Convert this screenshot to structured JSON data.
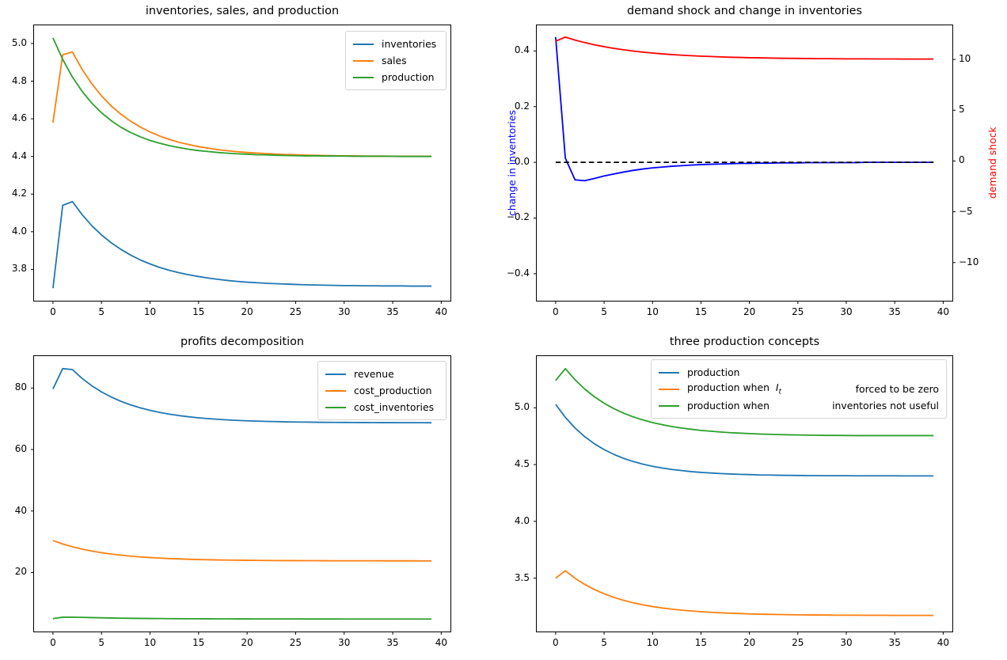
{
  "chart_data": [
    {
      "type": "line",
      "title": "inventories, sales, and production",
      "x": [
        0,
        1,
        2,
        3,
        4,
        5,
        6,
        7,
        8,
        9,
        10,
        11,
        12,
        13,
        14,
        15,
        16,
        17,
        18,
        19,
        20,
        21,
        22,
        23,
        24,
        25,
        26,
        27,
        28,
        29,
        30,
        31,
        32,
        33,
        34,
        35,
        36,
        37,
        38,
        39
      ],
      "xlim": [
        -1.95,
        40.95
      ],
      "ylim": [
        3.6335,
        5.0965
      ],
      "xticks": [
        0,
        5,
        10,
        15,
        20,
        25,
        30,
        35,
        40
      ],
      "xtick_labels": [
        "0",
        "5",
        "10",
        "15",
        "20",
        "25",
        "30",
        "35",
        "40"
      ],
      "yticks": [
        3.8,
        4.0,
        4.2,
        4.4,
        4.6,
        4.8,
        5.0
      ],
      "ytick_labels": [
        "3.8",
        "4.0",
        "4.2",
        "4.4",
        "4.6",
        "4.8",
        "5.0"
      ],
      "legend_position": "upper right",
      "series": [
        {
          "name": "inventories",
          "color": "#1f77b4",
          "values": [
            3.7,
            4.14,
            4.16,
            4.091,
            4.032,
            3.983,
            3.941,
            3.906,
            3.876,
            3.85,
            3.829,
            3.81,
            3.795,
            3.782,
            3.771,
            3.762,
            3.754,
            3.747,
            3.741,
            3.736,
            3.732,
            3.729,
            3.726,
            3.724,
            3.722,
            3.72,
            3.718,
            3.717,
            3.716,
            3.715,
            3.714,
            3.714,
            3.713,
            3.713,
            3.712,
            3.712,
            3.712,
            3.711,
            3.711,
            3.711
          ]
        },
        {
          "name": "sales",
          "color": "#ff7f0e",
          "values": [
            4.58,
            4.94,
            4.955,
            4.863,
            4.786,
            4.722,
            4.668,
            4.624,
            4.587,
            4.556,
            4.53,
            4.508,
            4.49,
            4.475,
            4.463,
            4.452,
            4.444,
            4.436,
            4.43,
            4.425,
            4.421,
            4.418,
            4.415,
            4.412,
            4.41,
            4.409,
            4.407,
            4.406,
            4.405,
            4.404,
            4.403,
            4.403,
            4.402,
            4.402,
            4.402,
            4.401,
            4.401,
            4.401,
            4.401,
            4.401
          ]
        },
        {
          "name": "production",
          "color": "#2ca02c",
          "values": [
            5.03,
            4.916,
            4.822,
            4.746,
            4.683,
            4.632,
            4.59,
            4.555,
            4.527,
            4.504,
            4.485,
            4.47,
            4.457,
            4.447,
            4.438,
            4.431,
            4.426,
            4.421,
            4.417,
            4.414,
            4.412,
            4.409,
            4.408,
            4.406,
            4.405,
            4.404,
            4.403,
            4.403,
            4.402,
            4.402,
            4.402,
            4.401,
            4.401,
            4.401,
            4.401,
            4.401,
            4.4,
            4.4,
            4.4,
            4.4
          ]
        }
      ]
    },
    {
      "type": "line",
      "title": "demand shock and change in inventories",
      "ylabel_left": "change in inventories",
      "ylabel_left_color": "#0000ff",
      "ylabel_right": "demand shock",
      "ylabel_right_color": "#ff0000",
      "x": [
        0,
        1,
        2,
        3,
        4,
        5,
        6,
        7,
        8,
        9,
        10,
        11,
        12,
        13,
        14,
        15,
        16,
        17,
        18,
        19,
        20,
        21,
        22,
        23,
        24,
        25,
        26,
        27,
        28,
        29,
        30,
        31,
        32,
        33,
        34,
        35,
        36,
        37,
        38,
        39
      ],
      "xlim": [
        -1.95,
        40.95
      ],
      "ylim": [
        -0.497,
        0.492
      ],
      "ylim_right": [
        -13.76,
        13.36
      ],
      "xticks": [
        0,
        5,
        10,
        15,
        20,
        25,
        30,
        35,
        40
      ],
      "xtick_labels": [
        "0",
        "5",
        "10",
        "15",
        "20",
        "25",
        "30",
        "35",
        "40"
      ],
      "yticks": [
        -0.4,
        -0.2,
        0.0,
        0.2,
        0.4
      ],
      "ytick_labels": [
        "−0.4",
        "−0.2",
        "0.0",
        "0.2",
        "0.4"
      ],
      "yticks_right": [
        -10,
        -5,
        0,
        5,
        10
      ],
      "ytick_labels_right": [
        "−10",
        "−5",
        "0",
        "5",
        "10"
      ],
      "series": [
        {
          "name": "change in inventories",
          "color": "#0000ff",
          "values": [
            0.45,
            0.015,
            -0.063,
            -0.066,
            -0.058,
            -0.049,
            -0.042,
            -0.035,
            -0.029,
            -0.024,
            -0.02,
            -0.017,
            -0.014,
            -0.012,
            -0.01,
            -0.008,
            -0.007,
            -0.006,
            -0.005,
            -0.004,
            -0.004,
            -0.003,
            -0.003,
            -0.002,
            -0.002,
            -0.002,
            -0.001,
            -0.001,
            -0.001,
            -0.001,
            -0.001,
            -0.001,
            0,
            0,
            0,
            0,
            0,
            0,
            0,
            0
          ]
        },
        {
          "name": "zero reference line",
          "color": "#000000",
          "dash": true,
          "values": [
            0,
            0,
            0,
            0,
            0,
            0,
            0,
            0,
            0,
            0,
            0,
            0,
            0,
            0,
            0,
            0,
            0,
            0,
            0,
            0,
            0,
            0,
            0,
            0,
            0,
            0,
            0,
            0,
            0,
            0,
            0,
            0,
            0,
            0,
            0,
            0,
            0,
            0,
            0,
            0
          ]
        },
        {
          "name": "demand shock",
          "color": "#ff0000",
          "axis": "right",
          "values": [
            11.8,
            12.2,
            11.91,
            11.66,
            11.44,
            11.26,
            11.09,
            10.95,
            10.83,
            10.72,
            10.63,
            10.55,
            10.48,
            10.42,
            10.37,
            10.32,
            10.29,
            10.25,
            10.22,
            10.2,
            10.17,
            10.16,
            10.14,
            10.12,
            10.11,
            10.1,
            10.09,
            10.08,
            10.08,
            10.07,
            10.06,
            10.06,
            10.06,
            10.05,
            10.05,
            10.05,
            10.04,
            10.04,
            10.04,
            10.04
          ]
        }
      ]
    },
    {
      "type": "line",
      "title": "profits decomposition",
      "x": [
        0,
        1,
        2,
        3,
        4,
        5,
        6,
        7,
        8,
        9,
        10,
        11,
        12,
        13,
        14,
        15,
        16,
        17,
        18,
        19,
        20,
        21,
        22,
        23,
        24,
        25,
        26,
        27,
        28,
        29,
        30,
        31,
        32,
        33,
        34,
        35,
        36,
        37,
        38,
        39
      ],
      "xlim": [
        -1.95,
        40.95
      ],
      "ylim": [
        0.83,
        90.37
      ],
      "xticks": [
        0,
        5,
        10,
        15,
        20,
        25,
        30,
        35,
        40
      ],
      "xtick_labels": [
        "0",
        "5",
        "10",
        "15",
        "20",
        "25",
        "30",
        "35",
        "40"
      ],
      "yticks": [
        20,
        40,
        60,
        80
      ],
      "ytick_labels": [
        "20",
        "40",
        "60",
        "80"
      ],
      "legend_position": "upper right",
      "series": [
        {
          "name": "revenue",
          "color": "#1f77b4",
          "values": [
            79.7,
            86.3,
            86.0,
            83.12,
            80.73,
            78.73,
            77.07,
            75.67,
            74.51,
            73.54,
            72.74,
            72.06,
            71.5,
            71.03,
            70.64,
            70.31,
            70.04,
            69.82,
            69.63,
            69.47,
            69.34,
            69.23,
            69.14,
            69.07,
            69.0,
            68.95,
            68.91,
            68.87,
            68.84,
            68.82,
            68.8,
            68.78,
            68.77,
            68.75,
            68.74,
            68.74,
            68.73,
            68.72,
            68.72,
            68.71
          ]
        },
        {
          "name": "cost_production",
          "color": "#ff7f0e",
          "values": [
            30.4,
            29.3,
            28.39,
            27.63,
            26.99,
            26.46,
            26.02,
            25.65,
            25.34,
            25.09,
            24.87,
            24.7,
            24.55,
            24.42,
            24.32,
            24.23,
            24.16,
            24.1,
            24.05,
            24.01,
            23.97,
            23.95,
            23.92,
            23.9,
            23.88,
            23.87,
            23.86,
            23.85,
            23.84,
            23.83,
            23.83,
            23.82,
            23.82,
            23.82,
            23.81,
            23.81,
            23.81,
            23.81,
            23.8,
            23.8
          ]
        },
        {
          "name": "cost_inventories",
          "color": "#2ca02c",
          "values": [
            5.0,
            5.48,
            5.5,
            5.42,
            5.35,
            5.28,
            5.22,
            5.17,
            5.13,
            5.09,
            5.06,
            5.04,
            5.02,
            5.0,
            4.98,
            4.97,
            4.96,
            4.95,
            4.94,
            4.93,
            4.93,
            4.92,
            4.92,
            4.91,
            4.91,
            4.91,
            4.9,
            4.9,
            4.9,
            4.9,
            4.89,
            4.89,
            4.89,
            4.89,
            4.89,
            4.89,
            4.89,
            4.89,
            4.88,
            4.88
          ]
        }
      ]
    },
    {
      "type": "line",
      "title": "three production concepts",
      "x": [
        0,
        1,
        2,
        3,
        4,
        5,
        6,
        7,
        8,
        9,
        10,
        11,
        12,
        13,
        14,
        15,
        16,
        17,
        18,
        19,
        20,
        21,
        22,
        23,
        24,
        25,
        26,
        27,
        28,
        29,
        30,
        31,
        32,
        33,
        34,
        35,
        36,
        37,
        38,
        39
      ],
      "xlim": [
        -1.95,
        40.95
      ],
      "ylim": [
        3.03,
        5.455
      ],
      "xticks": [
        0,
        5,
        10,
        15,
        20,
        25,
        30,
        35,
        40
      ],
      "xtick_labels": [
        "0",
        "5",
        "10",
        "15",
        "20",
        "25",
        "30",
        "35",
        "40"
      ],
      "yticks": [
        3.5,
        4.0,
        4.5,
        5.0
      ],
      "ytick_labels": [
        "3.5",
        "4.0",
        "4.5",
        "5.0"
      ],
      "legend_position": "upper right",
      "legend": {
        "rows": [
          {
            "left": "production",
            "right": ""
          },
          {
            "left": "production when  ",
            "math_i": "I",
            "math_sub": "t",
            "right": "forced to be zero"
          },
          {
            "left": "production when",
            "right": "inventories not useful"
          }
        ]
      },
      "series": [
        {
          "name": "production",
          "color": "#1f77b4",
          "values": [
            5.03,
            4.916,
            4.822,
            4.746,
            4.683,
            4.632,
            4.59,
            4.555,
            4.527,
            4.504,
            4.485,
            4.47,
            4.457,
            4.447,
            4.438,
            4.431,
            4.426,
            4.421,
            4.417,
            4.414,
            4.412,
            4.409,
            4.408,
            4.406,
            4.405,
            4.404,
            4.403,
            4.403,
            4.402,
            4.402,
            4.402,
            4.401,
            4.401,
            4.401,
            4.401,
            4.401,
            4.4,
            4.4,
            4.4,
            4.4
          ]
        },
        {
          "name": "production when I_t forced to be zero",
          "color": "#ff7f0e",
          "values": [
            3.5,
            3.565,
            3.499,
            3.445,
            3.4,
            3.362,
            3.331,
            3.305,
            3.283,
            3.265,
            3.25,
            3.237,
            3.227,
            3.218,
            3.211,
            3.204,
            3.199,
            3.195,
            3.191,
            3.188,
            3.185,
            3.183,
            3.181,
            3.18,
            3.178,
            3.177,
            3.176,
            3.176,
            3.175,
            3.174,
            3.174,
            3.174,
            3.173,
            3.173,
            3.173,
            3.172,
            3.172,
            3.172,
            3.172,
            3.172
          ]
        },
        {
          "name": "production when inventories not useful",
          "color": "#2ca02c",
          "values": [
            5.24,
            5.345,
            5.247,
            5.165,
            5.097,
            5.04,
            4.993,
            4.953,
            4.92,
            4.893,
            4.87,
            4.851,
            4.835,
            4.822,
            4.811,
            4.801,
            4.794,
            4.787,
            4.781,
            4.777,
            4.773,
            4.769,
            4.767,
            4.764,
            4.762,
            4.761,
            4.759,
            4.758,
            4.757,
            4.757,
            4.756,
            4.755,
            4.755,
            4.755,
            4.755,
            4.755,
            4.755,
            4.755,
            4.755,
            4.755
          ]
        }
      ]
    }
  ]
}
